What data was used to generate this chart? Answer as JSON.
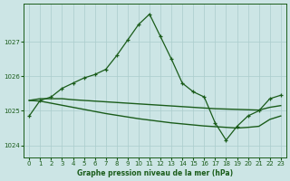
{
  "background_color": "#cce5e5",
  "grid_color": "#aacccc",
  "line_color": "#1a5c1a",
  "xlabel": "Graphe pression niveau de la mer (hPa)",
  "xlim": [
    -0.5,
    23.5
  ],
  "ylim": [
    1023.65,
    1028.1
  ],
  "yticks": [
    1024,
    1025,
    1026,
    1027
  ],
  "xticks": [
    0,
    1,
    2,
    3,
    4,
    5,
    6,
    7,
    8,
    9,
    10,
    11,
    12,
    13,
    14,
    15,
    16,
    17,
    18,
    19,
    20,
    21,
    22,
    23
  ],
  "line_marked_x": [
    0,
    1,
    2,
    3,
    4,
    5,
    6,
    7,
    8,
    9,
    10,
    11,
    12,
    13,
    14,
    15,
    16,
    17,
    18,
    19,
    20,
    21,
    22,
    23
  ],
  "line_marked_y": [
    1024.85,
    1025.3,
    1025.4,
    1025.65,
    1025.8,
    1025.95,
    1026.05,
    1026.2,
    1026.6,
    1027.05,
    1027.5,
    1027.8,
    1027.15,
    1026.5,
    1025.8,
    1025.55,
    1025.4,
    1024.65,
    1024.15,
    1024.55,
    1024.85,
    1025.0,
    1025.35,
    1025.45
  ],
  "line_flat_x": [
    0,
    1,
    2,
    3,
    4,
    5,
    6,
    7,
    8,
    9,
    10,
    11,
    12,
    13,
    14,
    15,
    16,
    17,
    18,
    19,
    20,
    21,
    22,
    23
  ],
  "line_flat_y": [
    1025.3,
    1025.35,
    1025.35,
    1025.35,
    1025.32,
    1025.3,
    1025.28,
    1025.26,
    1025.24,
    1025.22,
    1025.2,
    1025.18,
    1025.16,
    1025.14,
    1025.12,
    1025.1,
    1025.08,
    1025.06,
    1025.05,
    1025.04,
    1025.03,
    1025.02,
    1025.1,
    1025.15
  ],
  "line_decline_x": [
    0,
    1,
    2,
    3,
    4,
    5,
    6,
    7,
    8,
    9,
    10,
    11,
    12,
    13,
    14,
    15,
    16,
    17,
    18,
    19,
    20,
    21,
    22,
    23
  ],
  "line_decline_y": [
    1025.3,
    1025.28,
    1025.22,
    1025.16,
    1025.1,
    1025.04,
    1024.98,
    1024.92,
    1024.87,
    1024.82,
    1024.77,
    1024.73,
    1024.69,
    1024.65,
    1024.62,
    1024.59,
    1024.56,
    1024.54,
    1024.52,
    1024.5,
    1024.52,
    1024.55,
    1024.75,
    1024.85
  ]
}
